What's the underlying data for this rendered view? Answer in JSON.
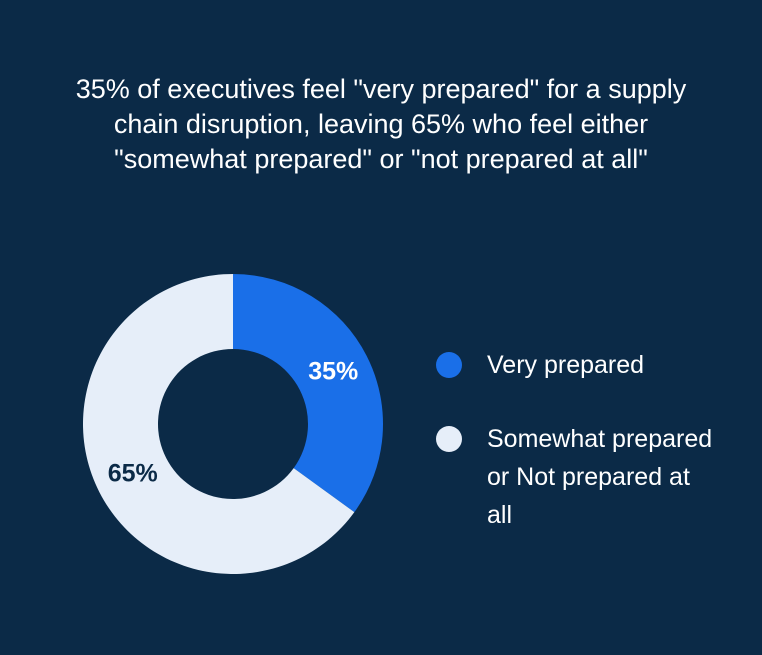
{
  "chart_data": {
    "type": "donut",
    "title": "35% of executives feel \"very prepared\" for a supply chain disruption, leaving 65% who feel either \"somewhat prepared\" or \"not prepared at all\"",
    "categories": [
      "Very prepared",
      "Somewhat prepared or Not prepared at all"
    ],
    "values": [
      35,
      65
    ],
    "value_labels": [
      "35%",
      "65%"
    ],
    "colors": [
      "#1a6fe8",
      "#e6eef9"
    ]
  }
}
